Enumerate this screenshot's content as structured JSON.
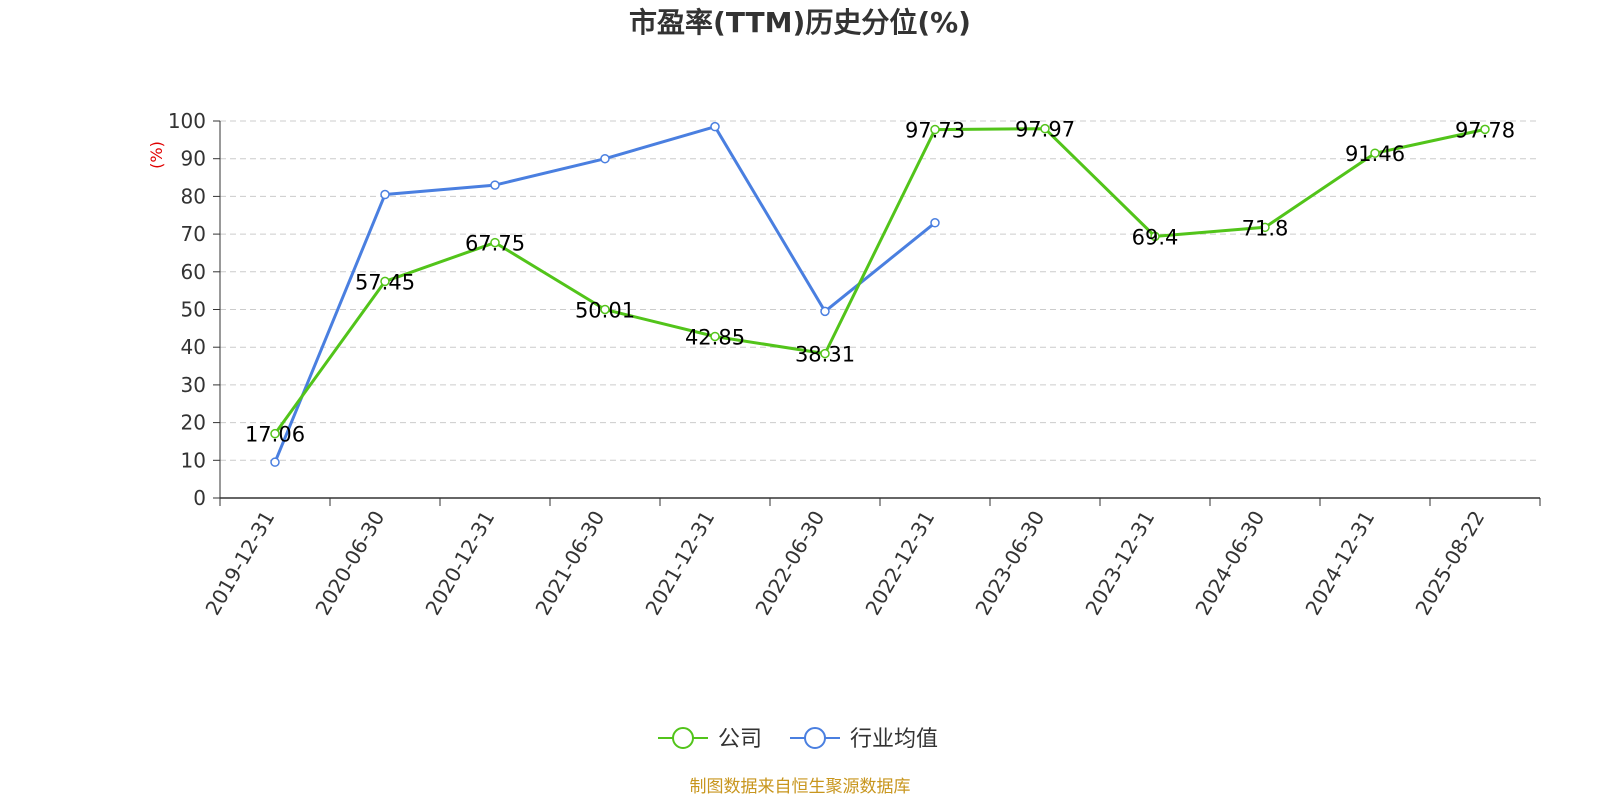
{
  "chart_data": {
    "type": "line",
    "title": "市盈率(TTM)历史分位(%)",
    "ylabel": "(%)",
    "xlabel": "",
    "ylim": [
      0,
      100
    ],
    "yticks": [
      0,
      10,
      20,
      30,
      40,
      50,
      60,
      70,
      80,
      90,
      100
    ],
    "grid": true,
    "legend_position": "bottom",
    "categories": [
      "2019-12-31",
      "2020-06-30",
      "2020-12-31",
      "2021-06-30",
      "2021-12-31",
      "2022-06-30",
      "2022-12-31",
      "2023-06-30",
      "2023-12-31",
      "2024-06-30",
      "2024-12-31",
      "2025-08-22"
    ],
    "series": [
      {
        "name": "公司",
        "color": "#52c41a",
        "values": [
          17.06,
          57.45,
          67.75,
          50.01,
          42.85,
          38.31,
          97.73,
          97.97,
          69.4,
          71.8,
          91.46,
          97.78
        ],
        "labels": [
          "17.06",
          "57.45",
          "67.75",
          "50.01",
          "42.85",
          "38.31",
          "97.73",
          "97.97",
          "69.4",
          "71.8",
          "91.46",
          "97.78"
        ]
      },
      {
        "name": "行业均值",
        "color": "#4a7fe0",
        "values": [
          9.5,
          80.5,
          83,
          90,
          98.5,
          49.5,
          73,
          null,
          null,
          null,
          null,
          null
        ]
      }
    ],
    "source": "制图数据来自恒生聚源数据库",
    "source_color": "#c8961e",
    "ylabel_color": "#e00000"
  }
}
